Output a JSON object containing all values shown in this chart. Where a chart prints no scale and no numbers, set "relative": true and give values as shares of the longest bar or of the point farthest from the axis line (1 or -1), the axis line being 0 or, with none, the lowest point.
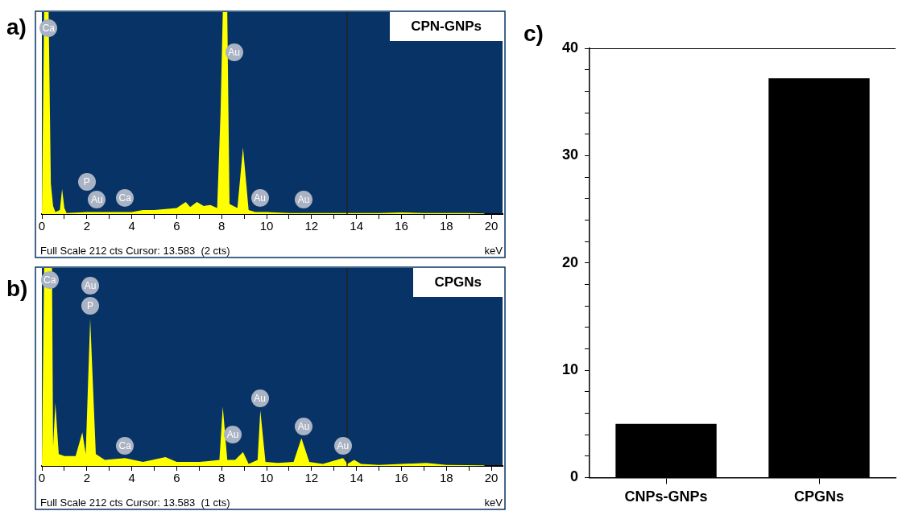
{
  "chart_data": [
    {
      "type": "area",
      "title": "a)",
      "subtitle": "CPN-GNPs",
      "xlabel": "keV",
      "relative": true,
      "color": "#ffff00",
      "x": [
        0,
        0.1,
        0.3,
        0.4,
        0.5,
        0.6,
        0.8,
        0.9,
        1.0,
        1.1,
        2,
        3,
        4,
        4.5,
        5,
        5.5,
        6,
        6.4,
        6.6,
        6.9,
        7.2,
        7.5,
        7.8,
        7.95,
        8.05,
        8.25,
        8.35,
        8.7,
        8.95,
        9.2,
        9.5,
        10,
        11,
        12,
        13,
        14,
        15,
        16,
        17,
        18,
        19,
        19.7
      ],
      "values": [
        0,
        1,
        1,
        0.15,
        0.04,
        0.01,
        0.02,
        0.125,
        0.03,
        0.005,
        0.01,
        0.01,
        0.01,
        0.02,
        0.02,
        0.025,
        0.03,
        0.06,
        0.035,
        0.06,
        0.04,
        0.045,
        0.03,
        0.5,
        1,
        1,
        0.05,
        0.03,
        0.33,
        0.02,
        0.01,
        0.01,
        0.005,
        0.005,
        0.005,
        0.005,
        0.005,
        0.008,
        0.005,
        0.005,
        0.005,
        0.003
      ],
      "xlim": [
        0,
        20.5
      ],
      "xticks": [
        0,
        {
          "value": 1,
          "label": null
        },
        2,
        {
          "value": 3,
          "label": null
        },
        4,
        {
          "value": 5,
          "label": null
        },
        6,
        {
          "value": 7,
          "label": null
        },
        8,
        {
          "value": 9,
          "label": null
        },
        10,
        {
          "value": 11,
          "label": null
        },
        12,
        {
          "value": 13,
          "label": null
        },
        14,
        {
          "value": 15,
          "label": null
        },
        16,
        {
          "value": 17,
          "label": null
        },
        18,
        {
          "value": 19,
          "label": null
        },
        20
      ],
      "ref_lines": [
        {
          "axis": "x",
          "value": 13.583,
          "color": "#222222"
        }
      ],
      "annotations": [
        "Full Scale 212 cts Cursor: 13.583  (2 cts)",
        {
          "text": "Ca",
          "x": 0.3,
          "y": 0.92
        },
        {
          "text": "P",
          "x": 2.0,
          "y": 0.16
        },
        {
          "text": "Au",
          "x": 2.45,
          "y": 0.07
        },
        {
          "text": "Ca",
          "x": 3.7,
          "y": 0.08
        },
        {
          "text": "Au",
          "x": 8.55,
          "y": 0.8
        },
        {
          "text": "Au",
          "x": 9.7,
          "y": 0.08
        },
        {
          "text": "Au",
          "x": 11.65,
          "y": 0.07
        }
      ]
    },
    {
      "type": "area",
      "title": "b)",
      "subtitle": "CPGNs",
      "xlabel": "keV",
      "relative": true,
      "color": "#ffff00",
      "x": [
        0,
        0.1,
        0.45,
        0.5,
        0.6,
        0.75,
        1.0,
        1.5,
        1.8,
        1.95,
        2.15,
        2.4,
        2.8,
        3.7,
        4.5,
        5.5,
        6,
        7,
        7.9,
        8.05,
        8.25,
        8.6,
        8.95,
        9.2,
        9.6,
        9.72,
        9.95,
        10.5,
        11.2,
        11.55,
        11.9,
        12.5,
        13.4,
        13.6,
        13.9,
        14.2,
        15,
        17.1,
        18,
        19.7
      ],
      "values": [
        0,
        1,
        1,
        0.1,
        0.32,
        0.06,
        0.05,
        0.05,
        0.17,
        0.06,
        0.745,
        0.06,
        0.03,
        0.04,
        0.02,
        0.045,
        0.02,
        0.02,
        0.03,
        0.3,
        0.03,
        0.03,
        0.07,
        0.01,
        0.03,
        0.28,
        0.02,
        0.015,
        0.02,
        0.14,
        0.02,
        0.01,
        0.04,
        0.01,
        0.03,
        0.01,
        0.005,
        0.015,
        0.005,
        0.003
      ],
      "xlim": [
        0,
        20.5
      ],
      "xticks": [
        0,
        {
          "value": 1,
          "label": null
        },
        2,
        {
          "value": 3,
          "label": null
        },
        4,
        {
          "value": 5,
          "label": null
        },
        6,
        {
          "value": 7,
          "label": null
        },
        8,
        {
          "value": 9,
          "label": null
        },
        10,
        {
          "value": 11,
          "label": null
        },
        12,
        {
          "value": 13,
          "label": null
        },
        14,
        {
          "value": 15,
          "label": null
        },
        16,
        {
          "value": 17,
          "label": null
        },
        18,
        {
          "value": 19,
          "label": null
        },
        20
      ],
      "ref_lines": [
        {
          "axis": "x",
          "value": 13.583,
          "color": "#222222"
        }
      ],
      "annotations": [
        "Full Scale 212 cts Cursor: 13.583  (1 cts)",
        {
          "text": "Ca",
          "x": 0.35,
          "y": 0.94
        },
        {
          "text": "Au",
          "x": 2.15,
          "y": 0.91
        },
        {
          "text": "P",
          "x": 2.15,
          "y": 0.81
        },
        {
          "text": "Ca",
          "x": 3.7,
          "y": 0.1
        },
        {
          "text": "Au",
          "x": 8.5,
          "y": 0.16
        },
        {
          "text": "Au",
          "x": 9.7,
          "y": 0.34
        },
        {
          "text": "Au",
          "x": 11.65,
          "y": 0.2
        },
        {
          "text": "Au",
          "x": 13.4,
          "y": 0.1
        }
      ]
    },
    {
      "type": "bar",
      "title": "c)",
      "categories": [
        "CNPs-GNPs",
        "CPGNs"
      ],
      "values": [
        5.0,
        37.2
      ],
      "color": "#000000",
      "ylim": [
        0,
        40
      ],
      "yticks": [
        0,
        {
          "value": 2,
          "label": null
        },
        {
          "value": 4,
          "label": null
        },
        {
          "value": 6,
          "label": null
        },
        {
          "value": 8,
          "label": null
        },
        10,
        {
          "value": 12,
          "label": null
        },
        {
          "value": 14,
          "label": null
        },
        {
          "value": 16,
          "label": null
        },
        {
          "value": 18,
          "label": null
        },
        20,
        {
          "value": 22,
          "label": null
        },
        {
          "value": 24,
          "label": null
        },
        {
          "value": 26,
          "label": null
        },
        {
          "value": 28,
          "label": null
        },
        30,
        {
          "value": 32,
          "label": null
        },
        {
          "value": 34,
          "label": null
        },
        {
          "value": 36,
          "label": null
        },
        {
          "value": 38,
          "label": null
        },
        40
      ]
    }
  ]
}
